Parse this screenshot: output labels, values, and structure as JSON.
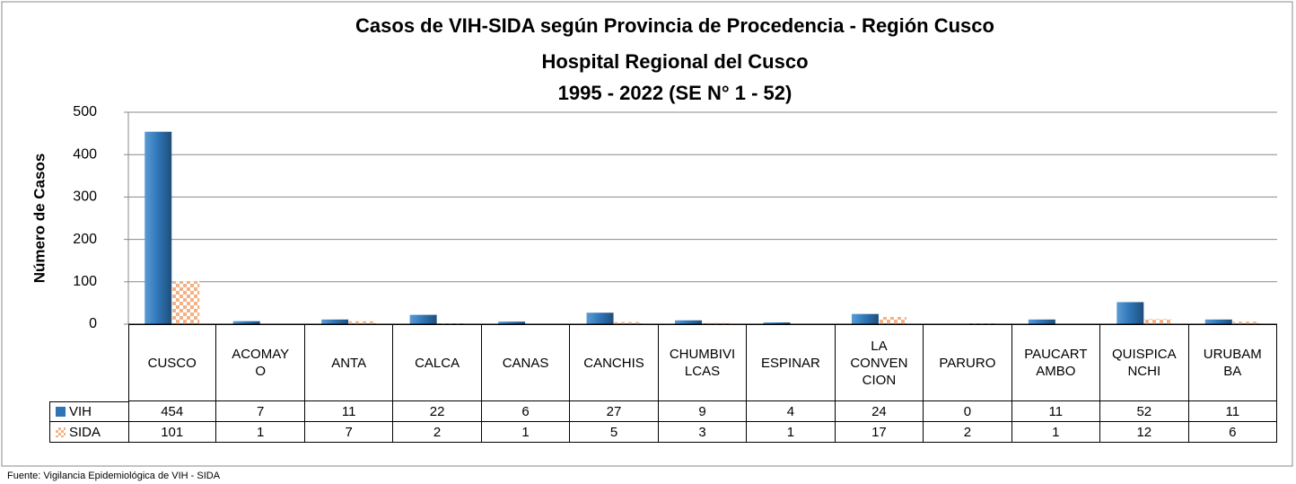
{
  "chart_data": {
    "type": "bar",
    "title": [
      "Casos de VIH-SIDA según Provincia de Procedencia - Región Cusco",
      "Hospital Regional del Cusco",
      "1995 - 2022 (SE N° 1 - 52)"
    ],
    "y_label": "Número de Casos",
    "categories": [
      "CUSCO",
      "ACOMAYO",
      "ANTA",
      "CALCA",
      "CANAS",
      "CANCHIS",
      "CHUMBIVILCAS",
      "ESPINAR",
      "LA CONVENCION",
      "PARURO",
      "PAUCARTAMBO",
      "QUISPICANCHI",
      "URUBAMBA"
    ],
    "series": [
      {
        "name": "VIH",
        "color": "#2e75b6",
        "values": [
          454,
          7,
          11,
          22,
          6,
          27,
          9,
          4,
          24,
          0,
          11,
          52,
          11
        ]
      },
      {
        "name": "SIDA",
        "color": "#f4b183",
        "values": [
          101,
          1,
          7,
          2,
          1,
          5,
          3,
          1,
          17,
          2,
          1,
          12,
          6
        ]
      }
    ],
    "ylim": [
      0,
      500
    ],
    "yticks": [
      0,
      100,
      200,
      300,
      400,
      500
    ],
    "grid": true,
    "source": "Fuente: Vigilancia Epidemiológica de VIH - SIDA"
  }
}
